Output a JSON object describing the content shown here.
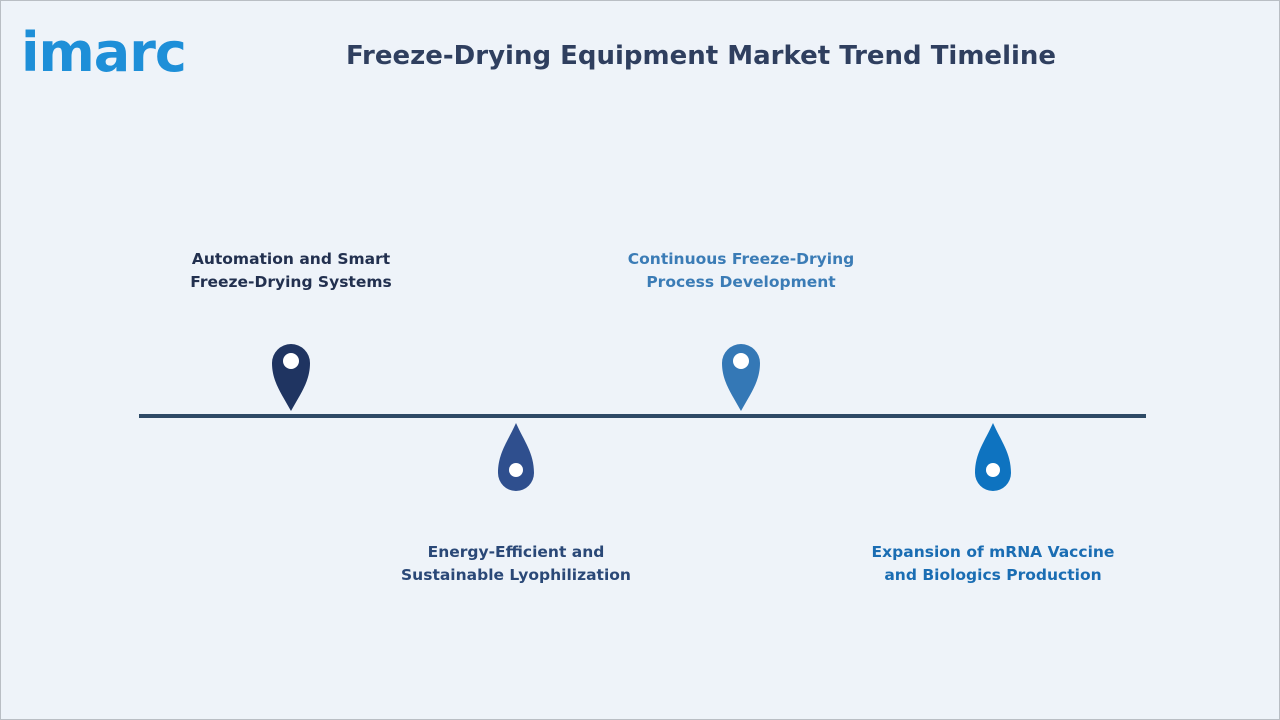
{
  "header": {
    "logo": "imarc",
    "title": "Freeze-Drying Equipment Market Trend Timeline"
  },
  "timeline": {
    "items": [
      {
        "label": "Automation and Smart Freeze-Drying Systems"
      },
      {
        "label": "Energy-Efficient and Sustainable Lyophilization"
      },
      {
        "label": "Continuous Freeze-Drying Process Development"
      },
      {
        "label": "Expansion of mRNA Vaccine and Biologics Production"
      }
    ]
  }
}
